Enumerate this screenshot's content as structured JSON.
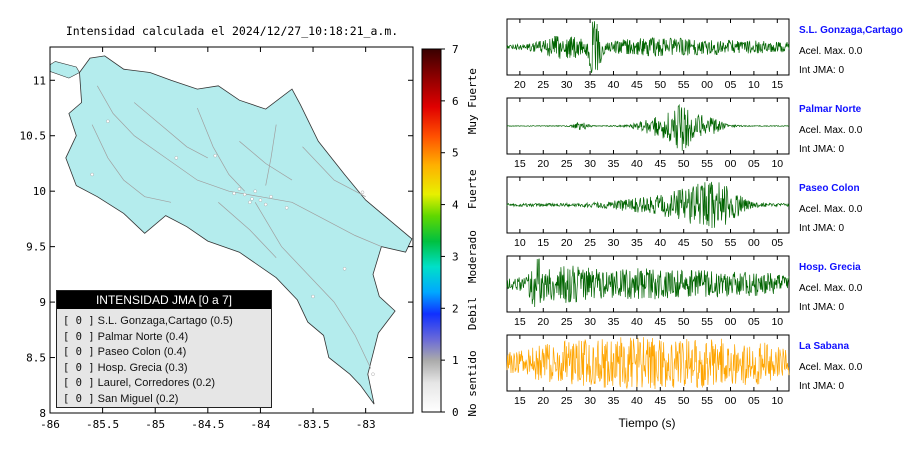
{
  "map": {
    "title": "Intensidad calculada el 2024/12/27_10:18:21_a.m.",
    "x_ticks": [
      -86,
      -85.5,
      -85,
      -84.5,
      -84,
      -83.5,
      -83
    ],
    "y_ticks": [
      8,
      8.5,
      9,
      9.5,
      10,
      10.5,
      11
    ],
    "xlim": [
      -86,
      -82.55
    ],
    "ylim": [
      8,
      11.3
    ],
    "land_color": "#b4eced",
    "road_color": "#a0a0a0"
  },
  "legend": {
    "header": "INTENSIDAD JMA [0 a 7]",
    "items": [
      {
        "badge": "[ 0 ]",
        "label": "S.L. Gonzaga,Cartago (0.5)"
      },
      {
        "badge": "[ 0 ]",
        "label": "Palmar Norte (0.4)"
      },
      {
        "badge": "[ 0 ]",
        "label": "Paseo Colon (0.4)"
      },
      {
        "badge": "[ 0 ]",
        "label": "Hosp. Grecia (0.3)"
      },
      {
        "badge": "[ 0 ]",
        "label": "Laurel, Corredores (0.2)"
      },
      {
        "badge": "[ 0 ]",
        "label": "San Miguel (0.2)"
      }
    ]
  },
  "colorbar": {
    "ticks": [
      "0",
      "1",
      "2",
      "3",
      "4",
      "5",
      "6",
      "7"
    ],
    "labels": [
      "No sentido",
      "Debil",
      "Moderado",
      "Fuerte",
      "Muy Fuerte"
    ]
  },
  "chart_data": [
    {
      "type": "line",
      "name": "S.L. Gonzaga,Cartago",
      "xlabel": "",
      "x_ticks": [
        "20",
        "25",
        "30",
        "35",
        "40",
        "45",
        "50",
        "55",
        "00",
        "05",
        "10",
        "15"
      ],
      "color": "#006400",
      "accel_label": "Acel. Max. 0.0",
      "int_label": "Int JMA: 0"
    },
    {
      "type": "line",
      "name": "Palmar Norte",
      "xlabel": "",
      "x_ticks": [
        "15",
        "20",
        "25",
        "30",
        "35",
        "40",
        "45",
        "50",
        "55",
        "00",
        "05",
        "10"
      ],
      "color": "#006400",
      "accel_label": "Acel. Max. 0.0",
      "int_label": "Int JMA: 0"
    },
    {
      "type": "line",
      "name": "Paseo Colon",
      "xlabel": "",
      "x_ticks": [
        "10",
        "15",
        "20",
        "25",
        "30",
        "35",
        "40",
        "45",
        "50",
        "55",
        "00",
        "05"
      ],
      "color": "#006400",
      "accel_label": "Acel. Max. 0.0",
      "int_label": "Int JMA: 0"
    },
    {
      "type": "line",
      "name": "Hosp. Grecia",
      "xlabel": "",
      "x_ticks": [
        "15",
        "20",
        "25",
        "30",
        "35",
        "40",
        "45",
        "50",
        "55",
        "00",
        "05",
        "10"
      ],
      "color": "#006400",
      "accel_label": "Acel. Max. 0.0",
      "int_label": "Int JMA: 0"
    },
    {
      "type": "line",
      "name": "La Sabana",
      "xlabel": "Tiempo (s)",
      "x_ticks": [
        "15",
        "20",
        "25",
        "30",
        "35",
        "40",
        "45",
        "50",
        "55",
        "00",
        "05",
        "10"
      ],
      "color": "#ffa500",
      "accel_label": "Acel. Max. 0.0",
      "int_label": "Int JMA: 0"
    }
  ]
}
